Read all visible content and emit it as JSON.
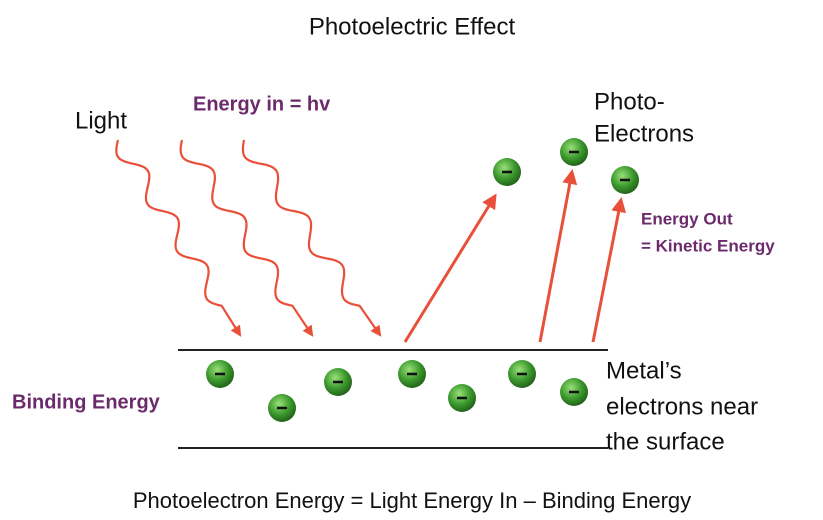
{
  "title": "Photoelectric Effect",
  "light_label": "Light",
  "energy_in_label": "Energy in = hv",
  "photoelectrons_label": [
    "Photo-",
    "Electrons"
  ],
  "energy_out_label": [
    "Energy Out",
    "= Kinetic Energy"
  ],
  "binding_energy_label": "Binding Energy",
  "metal_label": [
    "Metal’s",
    "electrons near",
    "the surface"
  ],
  "equation": "Photoelectron Energy = Light Energy In – Binding Energy"
}
